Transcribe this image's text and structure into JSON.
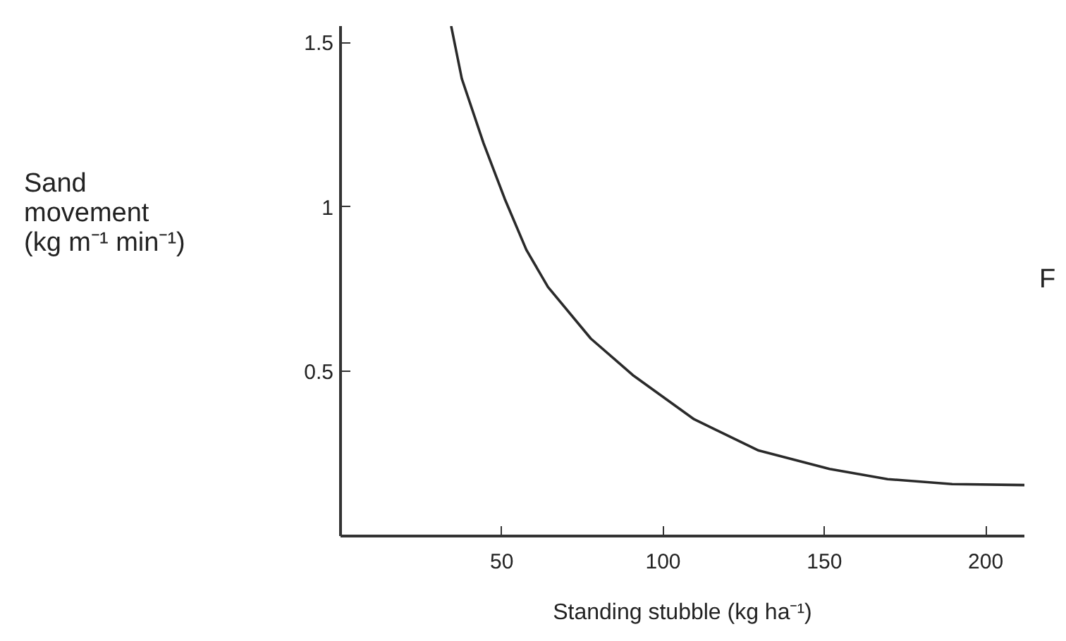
{
  "chart_data": {
    "type": "line",
    "xlabel": "Standing stubble (kg ha⁻¹)",
    "ylabel": "Sand\nmovement\n(kg m⁻¹ min⁻¹)",
    "x": [
      34.3,
      37.6,
      44.3,
      50.9,
      57.6,
      64.3,
      77.6,
      90.9,
      109.6,
      129.6,
      151.6,
      169.6,
      189.6,
      212
    ],
    "series": [
      {
        "color": "#2a2a2a",
        "values": [
          1.55,
          1.39,
          1.195,
          1.025,
          0.87,
          0.757,
          0.6,
          0.487,
          0.355,
          0.26,
          0.204,
          0.173,
          0.158,
          0.155
        ]
      }
    ],
    "xlim": [
      0,
      212
    ],
    "ylim": [
      0,
      1.55
    ],
    "xticks": [
      50,
      100,
      150,
      200
    ],
    "yticks": [
      0.5,
      1.0,
      1.5
    ],
    "annotations": [
      "F"
    ],
    "grid": false,
    "marker": "none",
    "line_style": "solid"
  }
}
